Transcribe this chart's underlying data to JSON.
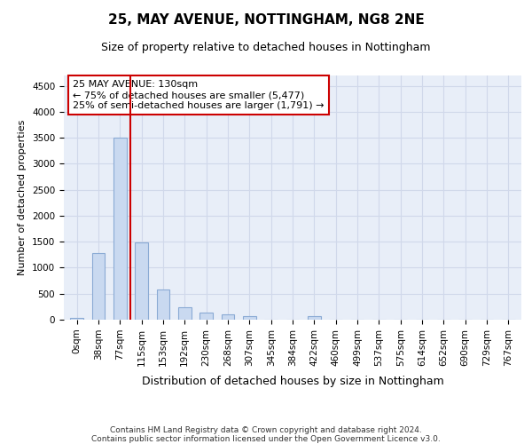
{
  "title1": "25, MAY AVENUE, NOTTINGHAM, NG8 2NE",
  "title2": "Size of property relative to detached houses in Nottingham",
  "xlabel": "Distribution of detached houses by size in Nottingham",
  "ylabel": "Number of detached properties",
  "bar_labels": [
    "0sqm",
    "38sqm",
    "77sqm",
    "115sqm",
    "153sqm",
    "192sqm",
    "230sqm",
    "268sqm",
    "307sqm",
    "345sqm",
    "384sqm",
    "422sqm",
    "460sqm",
    "499sqm",
    "537sqm",
    "575sqm",
    "614sqm",
    "652sqm",
    "690sqm",
    "729sqm",
    "767sqm"
  ],
  "bar_values": [
    30,
    1280,
    3500,
    1480,
    580,
    240,
    130,
    110,
    70,
    0,
    0,
    60,
    0,
    0,
    0,
    0,
    0,
    0,
    0,
    0,
    0
  ],
  "bar_color": "#c9d9f0",
  "bar_edge_color": "#8aaad4",
  "vline_color": "#cc0000",
  "vline_index": 2.5,
  "annotation_text": "25 MAY AVENUE: 130sqm\n← 75% of detached houses are smaller (5,477)\n25% of semi-detached houses are larger (1,791) →",
  "annotation_box_color": "#ffffff",
  "annotation_box_edge": "#cc0000",
  "ylim": [
    0,
    4700
  ],
  "yticks": [
    0,
    500,
    1000,
    1500,
    2000,
    2500,
    3000,
    3500,
    4000,
    4500
  ],
  "grid_color": "#d0d8ea",
  "background_color": "#e8eef8",
  "footer1": "Contains HM Land Registry data © Crown copyright and database right 2024.",
  "footer2": "Contains public sector information licensed under the Open Government Licence v3.0.",
  "title1_fontsize": 11,
  "title2_fontsize": 9,
  "ylabel_fontsize": 8,
  "xlabel_fontsize": 9,
  "tick_fontsize": 7.5,
  "annot_fontsize": 8,
  "footer_fontsize": 6.5
}
